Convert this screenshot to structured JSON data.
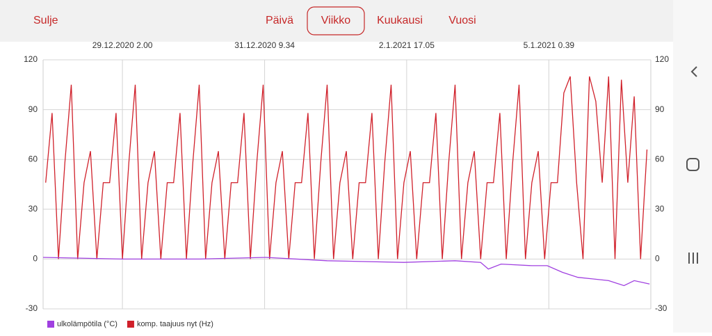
{
  "header": {
    "close": "Sulje",
    "tabs": [
      "Päivä",
      "Viikko",
      "Kuukausi",
      "Vuosi"
    ]
  },
  "chart_data": {
    "type": "line",
    "xlim": [
      -31,
      206.5
    ],
    "xticks": [
      {
        "value": 0,
        "label": "29.12.2020 2.00"
      },
      {
        "value": 55.57,
        "label": "31.12.2020 9.34"
      },
      {
        "value": 111.08,
        "label": "2.1.2021 17.05"
      },
      {
        "value": 166.65,
        "label": "5.1.2021 0.39"
      }
    ],
    "ylim": [
      -30,
      120
    ],
    "yticks": [
      -30,
      0,
      30,
      60,
      90,
      120
    ],
    "grid": true,
    "series": [
      {
        "name": "ulkolämpötila (°C)",
        "color": "#a040e0",
        "x": [
          -31,
          0,
          30,
          56,
          80,
          110,
          130,
          140,
          143,
          148,
          160,
          166,
          172,
          178,
          184,
          190,
          196,
          200,
          206
        ],
        "values": [
          1,
          0,
          0,
          1,
          -1,
          -2,
          -1,
          -2,
          -6,
          -3,
          -4,
          -4,
          -8,
          -11,
          -12,
          -13,
          -16,
          -13,
          -15
        ]
      },
      {
        "name": "komp. taajuus nyt (Hz)",
        "color": "#d0202a",
        "x": [
          -30,
          -27.5,
          -25,
          -22.5,
          -20,
          -17.5,
          -15,
          -12.5,
          -10,
          -7.5,
          -5,
          -2.5,
          0,
          2.5,
          5,
          7.5,
          10,
          12.5,
          15,
          17.5,
          20,
          22.5,
          25,
          27.5,
          30,
          32.5,
          35,
          37.5,
          40,
          42.5,
          45,
          47.5,
          50,
          52.5,
          55,
          57.5,
          60,
          62.5,
          65,
          67.5,
          70,
          72.5,
          75,
          77.5,
          80,
          82.5,
          85,
          87.5,
          90,
          92.5,
          95,
          97.5,
          100,
          102.5,
          105,
          107.5,
          110,
          112.5,
          115,
          117.5,
          120,
          122.5,
          125,
          127.5,
          130,
          132.5,
          135,
          137.5,
          140,
          142.5,
          145,
          147.5,
          150,
          152.5,
          155,
          157.5,
          160,
          162.5,
          165,
          167.5,
          170,
          172.5,
          175,
          177.5,
          180,
          182.5,
          185,
          187.5,
          190,
          192.5,
          195,
          197.5,
          200,
          202.5,
          205
        ],
        "values": [
          46,
          88,
          0,
          58,
          105,
          0,
          46,
          65,
          0,
          46,
          46,
          88,
          0,
          58,
          105,
          0,
          46,
          65,
          0,
          46,
          46,
          88,
          0,
          58,
          105,
          0,
          46,
          65,
          0,
          46,
          46,
          88,
          0,
          58,
          105,
          0,
          46,
          65,
          0,
          46,
          46,
          88,
          0,
          58,
          105,
          0,
          46,
          65,
          0,
          46,
          46,
          88,
          0,
          58,
          105,
          0,
          46,
          65,
          0,
          46,
          46,
          88,
          0,
          58,
          105,
          0,
          46,
          65,
          0,
          46,
          46,
          88,
          0,
          58,
          105,
          0,
          46,
          65,
          0,
          46,
          46,
          100,
          110,
          46,
          0,
          110,
          95,
          46,
          110,
          0,
          108,
          46,
          98,
          0,
          66
        ]
      }
    ]
  }
}
